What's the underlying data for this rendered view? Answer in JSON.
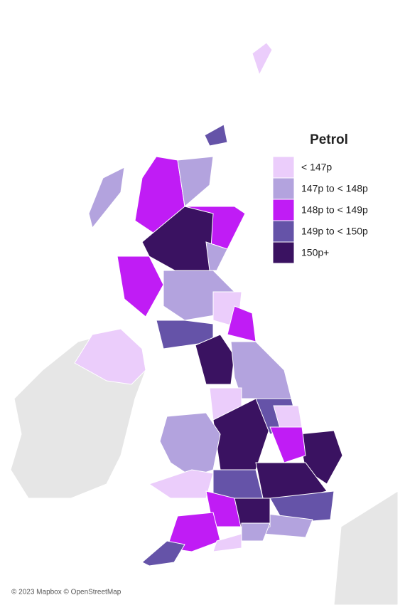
{
  "legend": {
    "title": "Petrol",
    "items": [
      {
        "label": "< 147p",
        "color": "#ebcdfb"
      },
      {
        "label": "147p to < 148p",
        "color": "#b3a3de"
      },
      {
        "label": "148p to < 149p",
        "color": "#c01cf5"
      },
      {
        "label": "149p to < 150p",
        "color": "#6553a8"
      },
      {
        "label": "150p+",
        "color": "#3a1261"
      }
    ]
  },
  "attribution": "© 2023 Mapbox © OpenStreetMap"
}
